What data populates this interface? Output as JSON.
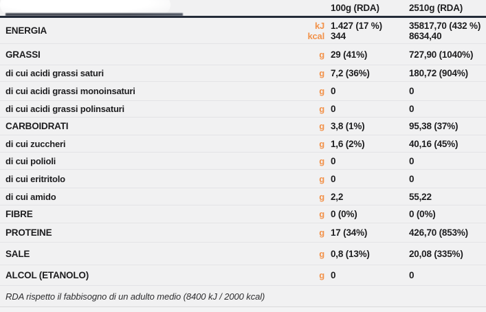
{
  "colors": {
    "accent_orange": "#f2924a",
    "header_rule": "#232a38",
    "row_separator": "#e3e3e6",
    "background": "#f1f1f2",
    "text": "#1d1d1f"
  },
  "header": {
    "col_100g": "100g (RDA)",
    "col_2510g": "2510g (RDA)"
  },
  "energia": {
    "label": "ENERGIA",
    "units": [
      "kJ",
      "kcal"
    ],
    "v1": [
      "1.427 (17 %)",
      "344"
    ],
    "v2": [
      "35817,70 (432 %)",
      "8634,40"
    ]
  },
  "rows": [
    {
      "label": "GRASSI",
      "unit": "g",
      "v1": "29 (41%)",
      "v2": "727,90 (1040%)"
    },
    {
      "label": "di cui acidi grassi saturi",
      "unit": "g",
      "v1": "7,2 (36%)",
      "v2": "180,72 (904%)"
    },
    {
      "label": "di cui acidi grassi monoinsaturi",
      "unit": "g",
      "v1": "0",
      "v2": "0"
    },
    {
      "label": "di cui acidi grassi polinsaturi",
      "unit": "g",
      "v1": "0",
      "v2": "0"
    },
    {
      "label": "CARBOIDRATI",
      "unit": "g",
      "v1": "3,8 (1%)",
      "v2": "95,38 (37%)"
    },
    {
      "label": "di cui zuccheri",
      "unit": "g",
      "v1": "1,6 (2%)",
      "v2": "40,16 (45%)"
    },
    {
      "label": "di cui polioli",
      "unit": "g",
      "v1": "0",
      "v2": "0"
    },
    {
      "label": "di cui eritritolo",
      "unit": "g",
      "v1": "0",
      "v2": "0"
    },
    {
      "label": "di cui amido",
      "unit": "g",
      "v1": "2,2",
      "v2": "55,22"
    },
    {
      "label": "FIBRE",
      "unit": "g",
      "v1": "0 (0%)",
      "v2": "0 (0%)"
    },
    {
      "label": "PROTEINE",
      "unit": "g",
      "v1": "17 (34%)",
      "v2": "426,70 (853%)"
    },
    {
      "label": "SALE",
      "unit": "g",
      "v1": "0,8 (13%)",
      "v2": "20,08 (335%)"
    },
    {
      "label": "ALCOL (ETANOLO)",
      "unit": "g",
      "v1": "0",
      "v2": "0"
    }
  ],
  "row_types": [
    "main",
    "sub",
    "sub",
    "sub",
    "main",
    "sub",
    "sub",
    "sub",
    "sub",
    "main",
    "main",
    "main",
    "main"
  ],
  "footnote": "RDA rispetto il fabbisogno di un adulto medio (8400 kJ / 2000 kcal)"
}
